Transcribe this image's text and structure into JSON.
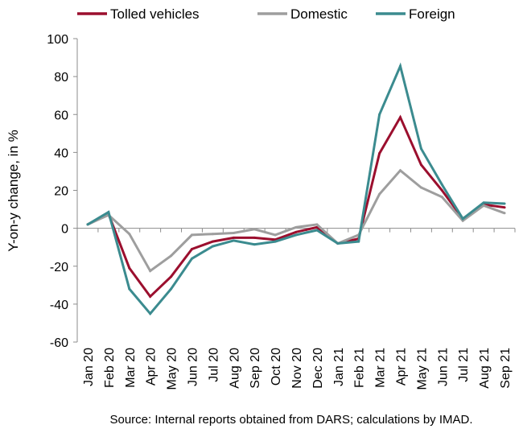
{
  "chart_data": {
    "type": "line",
    "categories": [
      "Jan 20",
      "Feb 20",
      "Mar 20",
      "Apr 20",
      "May 20",
      "Jun 20",
      "Jul 20",
      "Aug 20",
      "Sep 20",
      "Oct 20",
      "Nov 20",
      "Dec 20",
      "Jan 21",
      "Feb 21",
      "Mar 21",
      "Apr 21",
      "May 21",
      "Jun 21",
      "Jul 21",
      "Aug 21",
      "Sep 21"
    ],
    "ylabel": "Y-on-y change, in %",
    "ylim": [
      -60,
      100
    ],
    "yticks": [
      100,
      80,
      60,
      40,
      20,
      0,
      -20,
      -40,
      -60
    ],
    "grid": false,
    "legend_position": "top",
    "series": [
      {
        "name": "Tolled vehicles",
        "color": "#9b0f2e",
        "values": [
          2,
          7.5,
          -21,
          -36,
          -25.5,
          -11,
          -7,
          -5,
          -5,
          -6,
          -2,
          0.5,
          -8,
          -5.5,
          39.5,
          58.5,
          33.5,
          20,
          5,
          12.5,
          11
        ]
      },
      {
        "name": "Domestic",
        "color": "#9e9e9e",
        "values": [
          2,
          7,
          -3,
          -22.5,
          -14.5,
          -3.5,
          -3,
          -2.5,
          -0.5,
          -3.5,
          0.5,
          2,
          -8,
          -3.5,
          18,
          30.5,
          21.5,
          16.5,
          4,
          12,
          8
        ]
      },
      {
        "name": "Foreign",
        "color": "#3b8b8f",
        "values": [
          2,
          8.5,
          -32,
          -45,
          -32,
          -16,
          -9.5,
          -6.5,
          -8.5,
          -7,
          -3.5,
          -1,
          -8,
          -7,
          60,
          85.5,
          42,
          23,
          5,
          13.5,
          13
        ]
      }
    ]
  },
  "footer": {
    "source": "Source: Internal reports obtained from DARS; calculations by IMAD."
  }
}
